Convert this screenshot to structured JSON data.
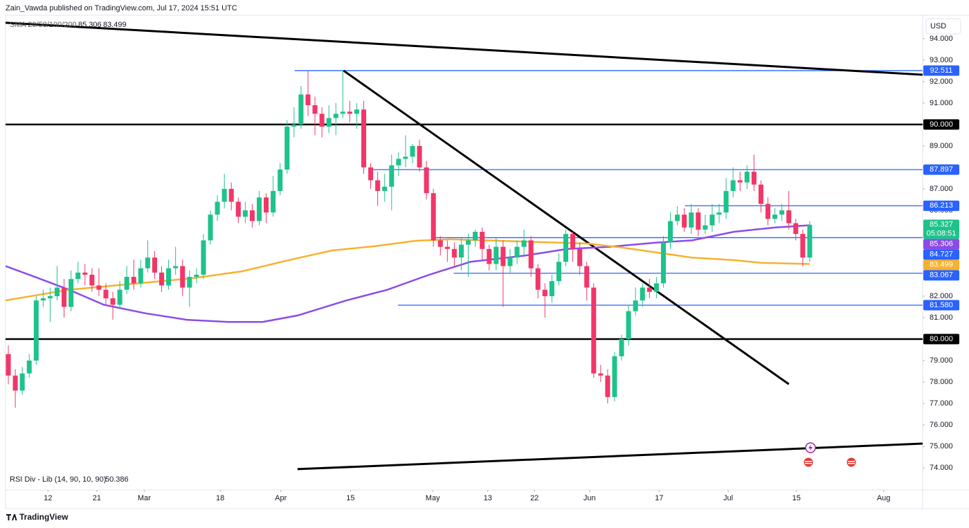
{
  "header": "Zain_Vawda published on TradingView.com, Jul 17, 2024 15:51 UTC",
  "footer": "TradingView",
  "chart_data": {
    "type": "candlestick",
    "currency": "USD",
    "legend_label": "SMA 20/50/100/200",
    "indicator_label": "RSI Div - Lib (14, 90, 10, 90)",
    "indicator_value": 50.386,
    "countdown": "05:08:51",
    "up_color": "#1ec28b",
    "down_color": "#f23668",
    "xlim": [
      -0.4,
      131.2
    ],
    "ylim": [
      72.97,
      95.06
    ],
    "xticks": [
      {
        "value": 5.7,
        "label": "12"
      },
      {
        "value": 12.7,
        "label": "21"
      },
      {
        "value": 19.5,
        "label": "Mar"
      },
      {
        "value": 30.4,
        "label": "18"
      },
      {
        "value": 39.1,
        "label": "Apr"
      },
      {
        "value": 49.1,
        "label": "15"
      },
      {
        "value": 60.9,
        "label": "May"
      },
      {
        "value": 68.8,
        "label": "13"
      },
      {
        "value": 75.5,
        "label": "22"
      },
      {
        "value": 83.4,
        "label": "Jun"
      },
      {
        "value": 93.4,
        "label": "17"
      },
      {
        "value": 103.3,
        "label": "Jul"
      },
      {
        "value": 113.1,
        "label": "15"
      },
      {
        "value": 125.6,
        "label": "Aug"
      }
    ],
    "yticks": [
      {
        "value": 94,
        "label": "94.000"
      },
      {
        "value": 93,
        "label": "93.000"
      },
      {
        "value": 92,
        "label": "92.000"
      },
      {
        "value": 91,
        "label": "91.000"
      },
      {
        "value": 89,
        "label": "89.000"
      },
      {
        "value": 88,
        "label": "88.000"
      },
      {
        "value": 87,
        "label": "87.000"
      },
      {
        "value": 86,
        "label": "86.000"
      },
      {
        "value": 82,
        "label": "82.000"
      },
      {
        "value": 81,
        "label": "81.000"
      },
      {
        "value": 79,
        "label": "79.000"
      },
      {
        "value": 78,
        "label": "78.000"
      },
      {
        "value": 77,
        "label": "77.000"
      },
      {
        "value": 76,
        "label": "76.000"
      },
      {
        "value": 75,
        "label": "75.000"
      },
      {
        "value": 74,
        "label": "74.000"
      }
    ],
    "open": [
      79.3,
      78.3,
      77.6,
      78.4,
      79.0,
      81.8,
      81.9,
      82.0,
      82.4,
      81.5,
      82.8,
      83.1,
      83.0,
      82.5,
      82.3,
      81.9,
      81.6,
      82.3,
      82.9,
      82.6,
      83.3,
      83.8,
      83.1,
      82.5,
      83.3,
      83.4,
      82.4,
      82.9,
      83.0,
      84.6,
      85.8,
      86.4,
      87.0,
      86.4,
      85.7,
      86.0,
      85.5,
      86.6,
      85.9,
      86.9,
      87.9,
      89.9,
      90.0,
      91.4,
      90.9,
      90.5,
      89.9,
      90.3,
      90.5,
      90.6,
      90.5,
      90.7,
      88.0,
      87.4,
      86.9,
      87.1,
      88.1,
      88.4,
      88.5,
      89.0,
      88.0,
      86.8,
      84.6,
      84.3,
      84.2,
      83.8,
      84.4,
      84.6,
      85.0,
      84.2,
      83.5,
      84.3,
      83.4,
      83.8,
      84.3,
      84.6,
      83.3,
      82.3,
      82.0,
      82.7,
      83.6,
      84.9,
      84.2,
      83.4,
      82.4,
      78.4,
      78.3,
      77.3,
      79.2,
      80.0,
      81.3,
      81.8,
      82.4,
      82.2,
      82.6,
      84.5,
      85.5,
      85.8,
      85.2,
      85.9,
      85.1,
      85.3,
      85.8,
      85.9,
      86.9,
      87.4,
      87.3,
      87.8,
      87.2,
      86.3,
      85.6,
      85.8,
      86.0,
      85.4,
      84.9,
      83.8
    ],
    "high": [
      79.7,
      78.6,
      78.7,
      79.3,
      82.0,
      82.3,
      82.4,
      83.4,
      82.8,
      83.2,
      83.6,
      83.5,
      83.3,
      83.3,
      82.6,
      82.2,
      82.7,
      83.4,
      83.7,
      83.7,
      84.6,
      84.1,
      83.4,
      83.7,
      84.3,
      83.7,
      83.2,
      83.3,
      84.9,
      86.0,
      86.7,
      87.7,
      87.3,
      86.6,
      86.4,
      86.3,
      86.9,
      86.8,
      87.6,
      88.2,
      90.2,
      90.8,
      91.8,
      92.5,
      91.3,
      90.8,
      90.9,
      91.0,
      92.511,
      91.1,
      91.0,
      91.1,
      88.2,
      87.8,
      87.7,
      88.6,
      88.7,
      89.5,
      89.1,
      89.3,
      88.3,
      87.0,
      84.8,
      84.6,
      84.5,
      84.7,
      84.9,
      85.1,
      85.2,
      84.4,
      84.7,
      84.6,
      84.2,
      84.6,
      85.1,
      84.8,
      83.5,
      82.6,
      83.0,
      84.0,
      85.1,
      85.0,
      84.5,
      83.6,
      82.6,
      78.8,
      78.6,
      79.4,
      80.2,
      81.6,
      82.4,
      82.6,
      82.8,
      82.9,
      84.8,
      85.9,
      86.2,
      86.1,
      86.3,
      86.1,
      85.8,
      86.3,
      86.3,
      87.5,
      88.0,
      87.8,
      88.1,
      88.6,
      87.4,
      86.6,
      86.1,
      86.3,
      86.9,
      85.6,
      85.1,
      85.5
    ],
    "low": [
      77.9,
      76.8,
      77.4,
      78.2,
      78.8,
      81.5,
      80.8,
      81.8,
      81.0,
      81.3,
      82.6,
      82.5,
      82.2,
      82.0,
      81.6,
      80.9,
      81.4,
      82.1,
      82.3,
      82.4,
      83.1,
      82.8,
      82.2,
      82.3,
      83.0,
      82.0,
      81.5,
      82.6,
      82.8,
      84.4,
      85.5,
      86.1,
      86.0,
      85.4,
      85.4,
      85.2,
      85.3,
      85.4,
      85.7,
      86.7,
      87.7,
      89.4,
      89.8,
      90.4,
      89.5,
      89.4,
      89.6,
      89.5,
      90.3,
      90.1,
      89.8,
      87.7,
      87.0,
      86.2,
      86.4,
      86.0,
      87.6,
      88.0,
      88.2,
      87.8,
      86.5,
      84.3,
      83.9,
      83.6,
      83.4,
      83.2,
      82.9,
      84.3,
      83.7,
      83.2,
      83.2,
      81.5,
      83.1,
      83.5,
      83.9,
      82.9,
      81.9,
      81.0,
      81.7,
      82.5,
      83.4,
      83.6,
      83.0,
      81.8,
      78.2,
      78.0,
      77.0,
      77.1,
      79.0,
      79.7,
      81.1,
      81.5,
      81.9,
      81.9,
      82.4,
      84.2,
      85.3,
      85.0,
      84.9,
      84.8,
      84.9,
      85.0,
      85.4,
      85.6,
      86.6,
      86.9,
      87.0,
      86.9,
      85.9,
      85.3,
      85.4,
      85.5,
      85.1,
      84.6,
      83.4,
      83.6
    ],
    "close": [
      78.3,
      77.6,
      78.4,
      79.0,
      81.8,
      81.9,
      82.0,
      82.4,
      81.5,
      82.8,
      83.1,
      83.0,
      82.5,
      82.3,
      81.9,
      81.6,
      82.3,
      82.9,
      82.6,
      83.3,
      83.8,
      83.1,
      82.5,
      83.3,
      83.4,
      82.4,
      82.9,
      83.0,
      84.6,
      85.8,
      86.4,
      87.0,
      86.4,
      85.7,
      86.0,
      85.5,
      86.6,
      85.9,
      86.9,
      87.9,
      89.9,
      90.0,
      91.4,
      90.9,
      90.5,
      89.9,
      90.3,
      90.5,
      90.6,
      90.5,
      90.7,
      88.0,
      87.4,
      86.9,
      87.1,
      88.1,
      88.4,
      88.5,
      89.0,
      88.0,
      86.8,
      84.6,
      84.3,
      84.2,
      83.8,
      84.4,
      84.6,
      85.0,
      84.2,
      83.5,
      84.3,
      83.4,
      83.8,
      84.3,
      84.6,
      83.3,
      82.3,
      82.0,
      82.7,
      83.6,
      84.9,
      84.2,
      83.4,
      82.4,
      78.4,
      78.3,
      77.3,
      79.2,
      80.0,
      81.3,
      81.8,
      82.4,
      82.2,
      82.6,
      84.5,
      85.5,
      85.8,
      85.2,
      85.9,
      85.1,
      85.3,
      85.8,
      85.9,
      86.9,
      87.4,
      87.3,
      87.8,
      87.2,
      86.3,
      85.6,
      85.8,
      86.0,
      85.4,
      84.9,
      83.8,
      85.327
    ],
    "series": [
      {
        "color": "#8a4ce8",
        "x": [
          -0.4,
          3.8,
          8.7,
          13.7,
          19.7,
          25.6,
          31.6,
          36.5,
          41.5,
          48.5,
          54.4,
          60.4,
          66.3,
          74.3,
          80.2,
          86.2,
          93.1,
          98.1,
          104.1,
          110,
          115
        ],
        "values": [
          83.4,
          82.9,
          82.3,
          81.6,
          81.2,
          80.9,
          80.8,
          80.8,
          81.1,
          81.8,
          82.3,
          83.0,
          83.6,
          83.9,
          84.2,
          84.3,
          84.5,
          84.6,
          85.0,
          85.2,
          85.306
        ]
      },
      {
        "color": "#f7b12c",
        "x": [
          -0.4,
          8.7,
          18.7,
          26.6,
          33.6,
          40.5,
          46.5,
          52.4,
          58.4,
          63.4,
          73.3,
          83.2,
          88.2,
          93.1,
          98.1,
          104.1,
          108.1,
          115
        ],
        "values": [
          81.8,
          82.3,
          82.6,
          82.84,
          83.16,
          83.7,
          84.13,
          84.32,
          84.58,
          84.65,
          84.55,
          84.45,
          84.26,
          84.03,
          83.8,
          83.68,
          83.55,
          83.499
        ]
      }
    ],
    "levels": [
      {
        "value": 92.511,
        "start": 41.1,
        "color": "#2962ff"
      },
      {
        "value": 90,
        "label": "90.000",
        "start": -0.4,
        "color": "#000000"
      },
      {
        "value": 87.897,
        "start": 52,
        "color": "#2962ff"
      },
      {
        "value": 86.213,
        "start": 97.1,
        "color": "#2962ff"
      },
      {
        "value": 84.727,
        "start": 60.8,
        "color": "#2962ff"
      },
      {
        "value": 83.067,
        "start": 63.9,
        "color": "#2962ff"
      },
      {
        "value": 81.58,
        "label": "81.580",
        "start": 55.9,
        "color": "#2962ff"
      },
      {
        "value": 80,
        "label": "80.000",
        "start": -0.4,
        "color": "#000000"
      }
    ],
    "trendlines": [
      {
        "x": [
          -0.4,
          131.2
        ],
        "y": [
          94.74,
          92.32
        ],
        "color": "#000000"
      },
      {
        "x": [
          48.1,
          112.0
        ],
        "y": [
          92.511,
          77.9
        ],
        "color": "#000000"
      },
      {
        "x": [
          41.5,
          131.2
        ],
        "y": [
          73.94,
          75.13
        ],
        "color": "#000000"
      }
    ]
  }
}
